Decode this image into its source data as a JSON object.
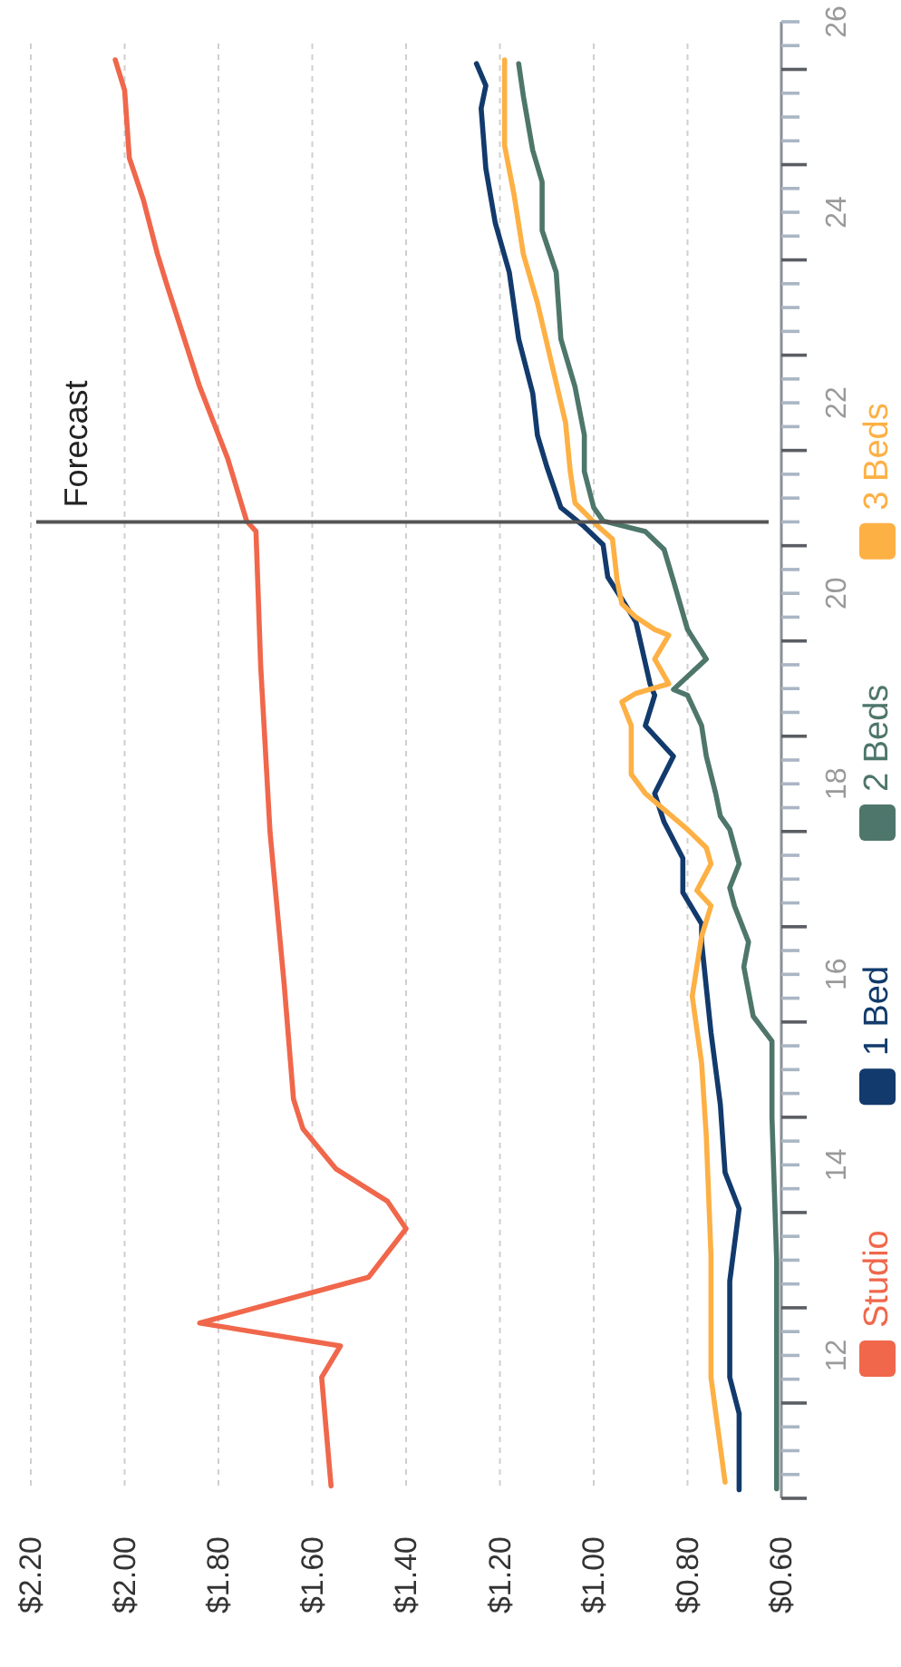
{
  "chart_data": {
    "type": "line",
    "series": [
      {
        "name": "Studio",
        "color": "#f0674b",
        "x": [
          1.56,
          1.57,
          1.58,
          1.54,
          1.84,
          1.48,
          1.4,
          1.44,
          1.55,
          1.62,
          1.64,
          1.66,
          1.69,
          1.71,
          1.72,
          1.74,
          1.78,
          1.84,
          1.91,
          1.93,
          1.96,
          1.99,
          2.0,
          2.02
        ],
        "values": [
          10.63,
          11.2,
          11.77,
          12.1,
          12.34,
          12.82,
          13.33,
          13.62,
          13.96,
          14.38,
          14.69,
          15.9,
          17.49,
          19.24,
          20.65,
          20.76,
          21.41,
          22.17,
          23.24,
          23.56,
          24.13,
          24.57,
          25.28,
          25.6
        ]
      },
      {
        "name": "1 Bed",
        "color": "#123a6c",
        "x": [
          0.69,
          0.69,
          0.71,
          0.71,
          0.69,
          0.72,
          0.73,
          0.75,
          0.77,
          0.77,
          0.81,
          0.81,
          0.85,
          0.87,
          0.83,
          0.89,
          0.87,
          0.88,
          0.91,
          0.94,
          0.97,
          0.98,
          1.02,
          1.07,
          1.1,
          1.12,
          1.13,
          1.16,
          1.18,
          1.21,
          1.23,
          1.24,
          1.23,
          1.25
        ],
        "values": [
          10.59,
          11.39,
          11.77,
          12.78,
          13.54,
          13.92,
          14.63,
          15.39,
          16.34,
          16.53,
          16.86,
          17.22,
          17.6,
          17.9,
          18.29,
          18.61,
          18.93,
          19.05,
          19.7,
          19.94,
          20.17,
          20.51,
          20.7,
          20.9,
          21.33,
          21.66,
          22.1,
          22.67,
          23.37,
          23.89,
          24.46,
          25.09,
          25.33,
          25.56
        ]
      },
      {
        "name": "2 Beds",
        "color": "#4e766b",
        "x": [
          0.61,
          0.61,
          0.61,
          0.62,
          0.62,
          0.66,
          0.68,
          0.67,
          0.7,
          0.71,
          0.69,
          0.71,
          0.73,
          0.74,
          0.76,
          0.77,
          0.8,
          0.83,
          0.76,
          0.8,
          0.83,
          0.85,
          0.89,
          0.98,
          1.0,
          1.02,
          1.02,
          1.04,
          1.07,
          1.08,
          1.11,
          1.11,
          1.13,
          1.15,
          1.16
        ],
        "values": [
          10.6,
          11.5,
          13,
          14.5,
          15.3,
          15.56,
          16.08,
          16.34,
          16.72,
          16.91,
          17.16,
          17.52,
          17.66,
          17.9,
          18.29,
          18.61,
          18.93,
          18.99,
          19.31,
          19.62,
          20.13,
          20.46,
          20.65,
          20.76,
          20.9,
          21.28,
          21.66,
          22.17,
          22.67,
          23.37,
          23.81,
          24.32,
          24.65,
          25.22,
          25.56
        ]
      },
      {
        "name": "3 Beds",
        "color": "#fdb044",
        "x": [
          0.72,
          0.75,
          0.75,
          0.76,
          0.77,
          0.79,
          0.77,
          0.75,
          0.78,
          0.75,
          0.76,
          0.8,
          0.89,
          0.92,
          0.92,
          0.94,
          0.91,
          0.84,
          0.87,
          0.84,
          0.87,
          0.91,
          0.94,
          0.95,
          0.96,
          0.99,
          1.04,
          1.05,
          1.06,
          1.09,
          1.12,
          1.15,
          1.17,
          1.19,
          1.19,
          1.19
        ],
        "values": [
          10.67,
          11.77,
          13.05,
          14.3,
          15.07,
          15.77,
          16.4,
          16.72,
          16.88,
          17.16,
          17.33,
          17.52,
          17.9,
          18.1,
          18.61,
          18.86,
          18.95,
          19.05,
          19.31,
          19.56,
          19.62,
          19.75,
          19.89,
          20.13,
          20.57,
          20.7,
          20.95,
          21.28,
          21.79,
          22.42,
          23.05,
          23.56,
          24.19,
          24.7,
          25.41,
          25.6
        ]
      }
    ],
    "xlim": [
      2.2,
      0.6
    ],
    "xticks": [
      {
        "value": 2.2,
        "label": "$2.20"
      },
      {
        "value": 2.0,
        "label": "$2.00"
      },
      {
        "value": 1.8,
        "label": "$1.80"
      },
      {
        "value": 1.6,
        "label": "$1.60"
      },
      {
        "value": 1.4,
        "label": "$1.40"
      },
      {
        "value": 1.2,
        "label": "$1.20"
      },
      {
        "value": 1.0,
        "label": "$1.00"
      },
      {
        "value": 0.8,
        "label": "$0.80"
      },
      {
        "value": 0.6,
        "label": "$0.60"
      }
    ],
    "ylim": [
      10.5,
      26
    ],
    "yticks": [
      {
        "value": 10.5,
        "label": null
      },
      {
        "value": 10.75,
        "label": null
      },
      {
        "value": 11,
        "label": null
      },
      {
        "value": 11.25,
        "label": null
      },
      {
        "value": 11.5,
        "label": null
      },
      {
        "value": 11.75,
        "label": null
      },
      12,
      {
        "value": 12.25,
        "label": null
      },
      {
        "value": 12.5,
        "label": null
      },
      {
        "value": 12.75,
        "label": null
      },
      {
        "value": 13,
        "label": null
      },
      {
        "value": 13.25,
        "label": null
      },
      {
        "value": 13.5,
        "label": null
      },
      {
        "value": 13.75,
        "label": null
      },
      14,
      {
        "value": 14.25,
        "label": null
      },
      {
        "value": 14.5,
        "label": null
      },
      {
        "value": 14.75,
        "label": null
      },
      {
        "value": 15,
        "label": null
      },
      {
        "value": 15.25,
        "label": null
      },
      {
        "value": 15.5,
        "label": null
      },
      {
        "value": 15.75,
        "label": null
      },
      16,
      {
        "value": 16.25,
        "label": null
      },
      {
        "value": 16.5,
        "label": null
      },
      {
        "value": 16.75,
        "label": null
      },
      {
        "value": 17,
        "label": null
      },
      {
        "value": 17.25,
        "label": null
      },
      {
        "value": 17.5,
        "label": null
      },
      {
        "value": 17.75,
        "label": null
      },
      18,
      {
        "value": 18.25,
        "label": null
      },
      {
        "value": 18.5,
        "label": null
      },
      {
        "value": 18.75,
        "label": null
      },
      {
        "value": 19,
        "label": null
      },
      {
        "value": 19.25,
        "label": null
      },
      {
        "value": 19.5,
        "label": null
      },
      {
        "value": 19.75,
        "label": null
      },
      20,
      {
        "value": 20.25,
        "label": null
      },
      {
        "value": 20.5,
        "label": null
      },
      {
        "value": 20.75,
        "label": null
      },
      {
        "value": 21,
        "label": null
      },
      {
        "value": 21.25,
        "label": null
      },
      {
        "value": 21.5,
        "label": null
      },
      {
        "value": 21.75,
        "label": null
      },
      22,
      {
        "value": 22.25,
        "label": null
      },
      {
        "value": 22.5,
        "label": null
      },
      {
        "value": 22.75,
        "label": null
      },
      {
        "value": 23,
        "label": null
      },
      {
        "value": 23.25,
        "label": null
      },
      {
        "value": 23.5,
        "label": null
      },
      {
        "value": 23.75,
        "label": null
      },
      24,
      {
        "value": 24.25,
        "label": null
      },
      {
        "value": 24.5,
        "label": null
      },
      {
        "value": 24.75,
        "label": null
      },
      {
        "value": 25,
        "label": null
      },
      {
        "value": 25.25,
        "label": null
      },
      {
        "value": 25.5,
        "label": null
      },
      {
        "value": 25.75,
        "label": null
      },
      26
    ],
    "ref_lines": [
      {
        "axis": "y",
        "value": 20.75,
        "label": "Forecast",
        "color": "#555555"
      }
    ],
    "grid": "x",
    "legend": "right"
  }
}
